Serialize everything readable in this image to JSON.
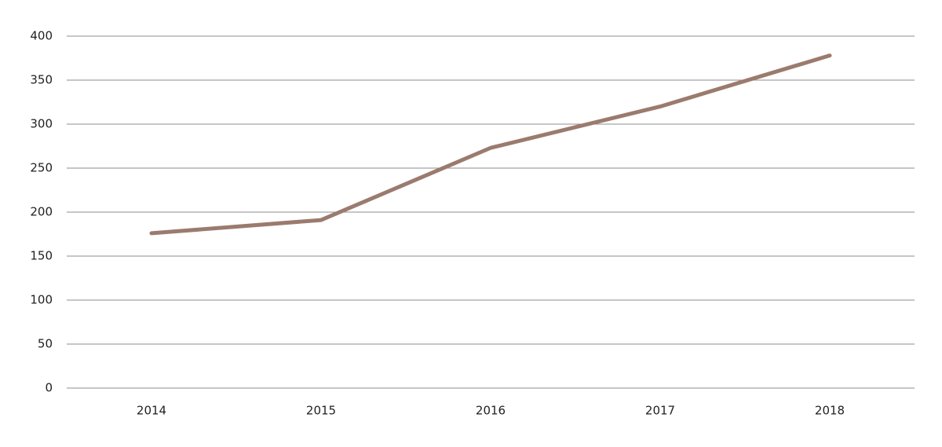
{
  "chart_data": {
    "type": "line",
    "categories": [
      "2014",
      "2015",
      "2016",
      "2017",
      "2018"
    ],
    "values": [
      176,
      191,
      273,
      320,
      378
    ],
    "color": "#9b7b6e",
    "ylim": [
      0,
      400
    ],
    "yticks": [
      0,
      50,
      100,
      150,
      200,
      250,
      300,
      350,
      400
    ],
    "grid": true
  }
}
